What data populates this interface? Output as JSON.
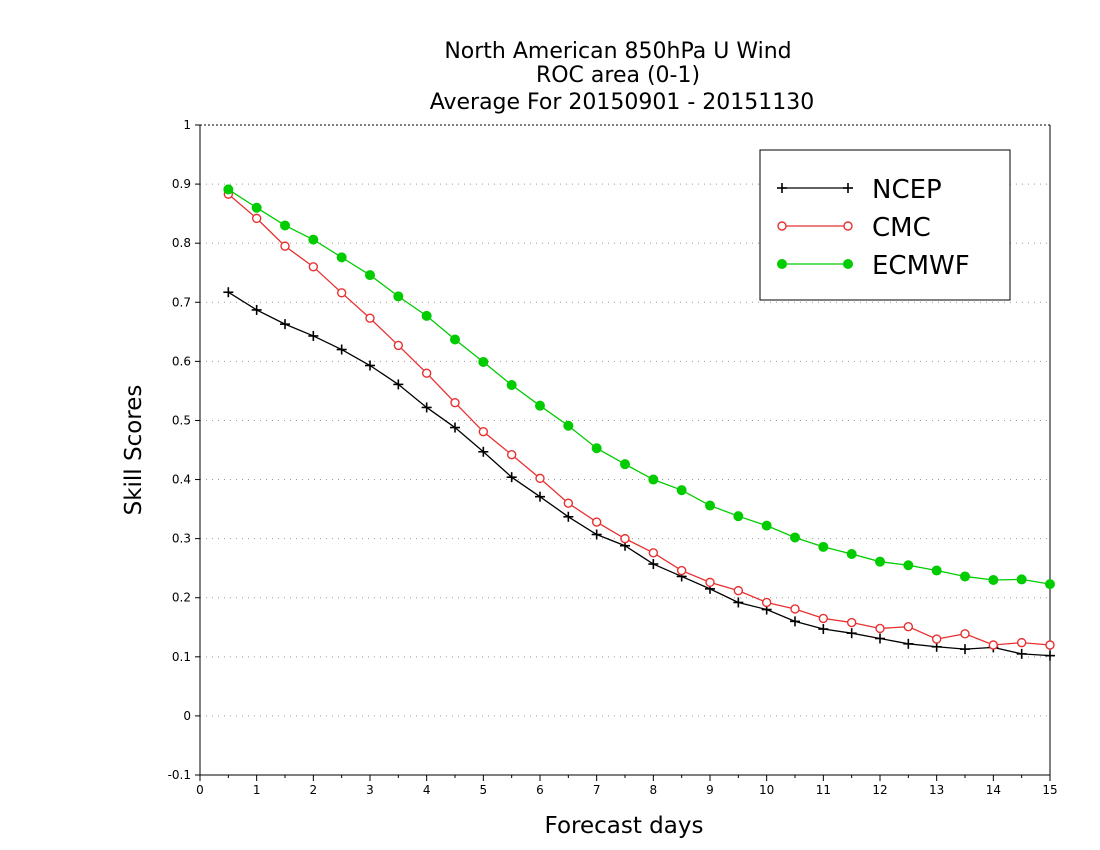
{
  "chart_data": {
    "type": "line",
    "title": [
      "North American 850hPa U Wind",
      "ROC area (0-1)",
      "Average For 20150901 - 20151130"
    ],
    "xlabel": "Forecast days",
    "ylabel": "Skill Scores",
    "xlim": [
      0,
      15
    ],
    "ylim": [
      -0.1,
      1
    ],
    "xticks": [
      0,
      1,
      2,
      3,
      4,
      5,
      6,
      7,
      8,
      9,
      10,
      11,
      12,
      13,
      14,
      15
    ],
    "xtick_labels": [
      "0",
      "1",
      "2",
      "3",
      "4",
      "5",
      "6",
      "7",
      "8",
      "9",
      "10",
      "11",
      "12",
      "13",
      "14",
      "15"
    ],
    "yticks": [
      -0.1,
      0,
      0.1,
      0.2,
      0.3,
      0.4,
      0.5,
      0.6,
      0.7,
      0.8,
      0.9,
      1
    ],
    "ytick_labels": [
      "-0.1",
      "0",
      "0.1",
      "0.2",
      "0.3",
      "0.4",
      "0.5",
      "0.6",
      "0.7",
      "0.8",
      "0.9",
      "1"
    ],
    "grid": "horizontal-dotted",
    "legend_position": "top-right",
    "x": [
      0.5,
      1,
      1.5,
      2,
      2.5,
      3,
      3.5,
      4,
      4.5,
      5,
      5.5,
      6,
      6.5,
      7,
      7.5,
      8,
      8.5,
      9,
      9.5,
      10,
      10.5,
      11,
      11.5,
      12,
      12.5,
      13,
      13.5,
      14,
      14.5,
      15
    ],
    "series": [
      {
        "name": "NCEP",
        "color": "#000000",
        "marker": "plus",
        "values": [
          0.717,
          0.687,
          0.663,
          0.643,
          0.62,
          0.593,
          0.561,
          0.522,
          0.488,
          0.447,
          0.404,
          0.371,
          0.337,
          0.307,
          0.288,
          0.257,
          0.236,
          0.215,
          0.192,
          0.18,
          0.16,
          0.147,
          0.14,
          0.131,
          0.122,
          0.117,
          0.113,
          0.116,
          0.105,
          0.102
        ]
      },
      {
        "name": "CMC",
        "color": "#e83030",
        "marker": "open-circle",
        "values": [
          0.883,
          0.842,
          0.795,
          0.76,
          0.716,
          0.673,
          0.627,
          0.58,
          0.53,
          0.481,
          0.442,
          0.402,
          0.36,
          0.328,
          0.3,
          0.276,
          0.246,
          0.226,
          0.212,
          0.192,
          0.181,
          0.165,
          0.158,
          0.148,
          0.151,
          0.13,
          0.139,
          0.12,
          0.124,
          0.12
        ]
      },
      {
        "name": "ECMWF",
        "color": "#00cc00",
        "marker": "filled-circle",
        "values": [
          0.891,
          0.86,
          0.83,
          0.806,
          0.776,
          0.746,
          0.71,
          0.677,
          0.637,
          0.599,
          0.56,
          0.525,
          0.491,
          0.453,
          0.426,
          0.4,
          0.382,
          0.356,
          0.338,
          0.322,
          0.302,
          0.286,
          0.274,
          0.261,
          0.255,
          0.246,
          0.236,
          0.23,
          0.231,
          0.223
        ]
      }
    ]
  }
}
